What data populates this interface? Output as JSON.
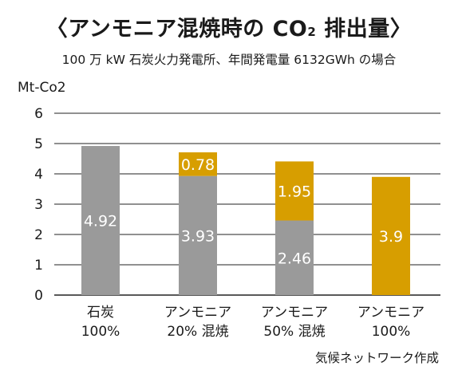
{
  "title": {
    "open": "〈アンモニア混焼時の CO",
    "sub": "2",
    "close": " 排出量〉"
  },
  "subtitle": "100 万 kW 石炭火力発電所、年間発電量 6132GWh の場合",
  "source": "気候ネットワーク作成",
  "colors": {
    "coal": "#9a9a9a",
    "ammonia": "#d79e00",
    "grid": "#222222"
  },
  "chart_data": {
    "type": "bar",
    "stacked": true,
    "ylabel": "Mt-Co2",
    "ylim": [
      0,
      6
    ],
    "yticks": [
      "0",
      "1",
      "2",
      "3",
      "4",
      "5",
      "6"
    ],
    "grid": true,
    "categories": [
      [
        "石炭",
        "100%"
      ],
      [
        "アンモニア",
        "20% 混焼"
      ],
      [
        "アンモニア",
        "50% 混焼"
      ],
      [
        "アンモニア",
        "100%"
      ]
    ],
    "series": [
      {
        "values": [
          4.92,
          3.93,
          2.46,
          0
        ],
        "labels": [
          "4.92",
          "3.93",
          "2.46",
          ""
        ],
        "color": "#9a9a9a"
      },
      {
        "values": [
          0,
          0.78,
          1.95,
          3.9
        ],
        "labels": [
          "",
          "0.78",
          "1.95",
          "3.9"
        ],
        "color": "#d79e00"
      }
    ]
  }
}
